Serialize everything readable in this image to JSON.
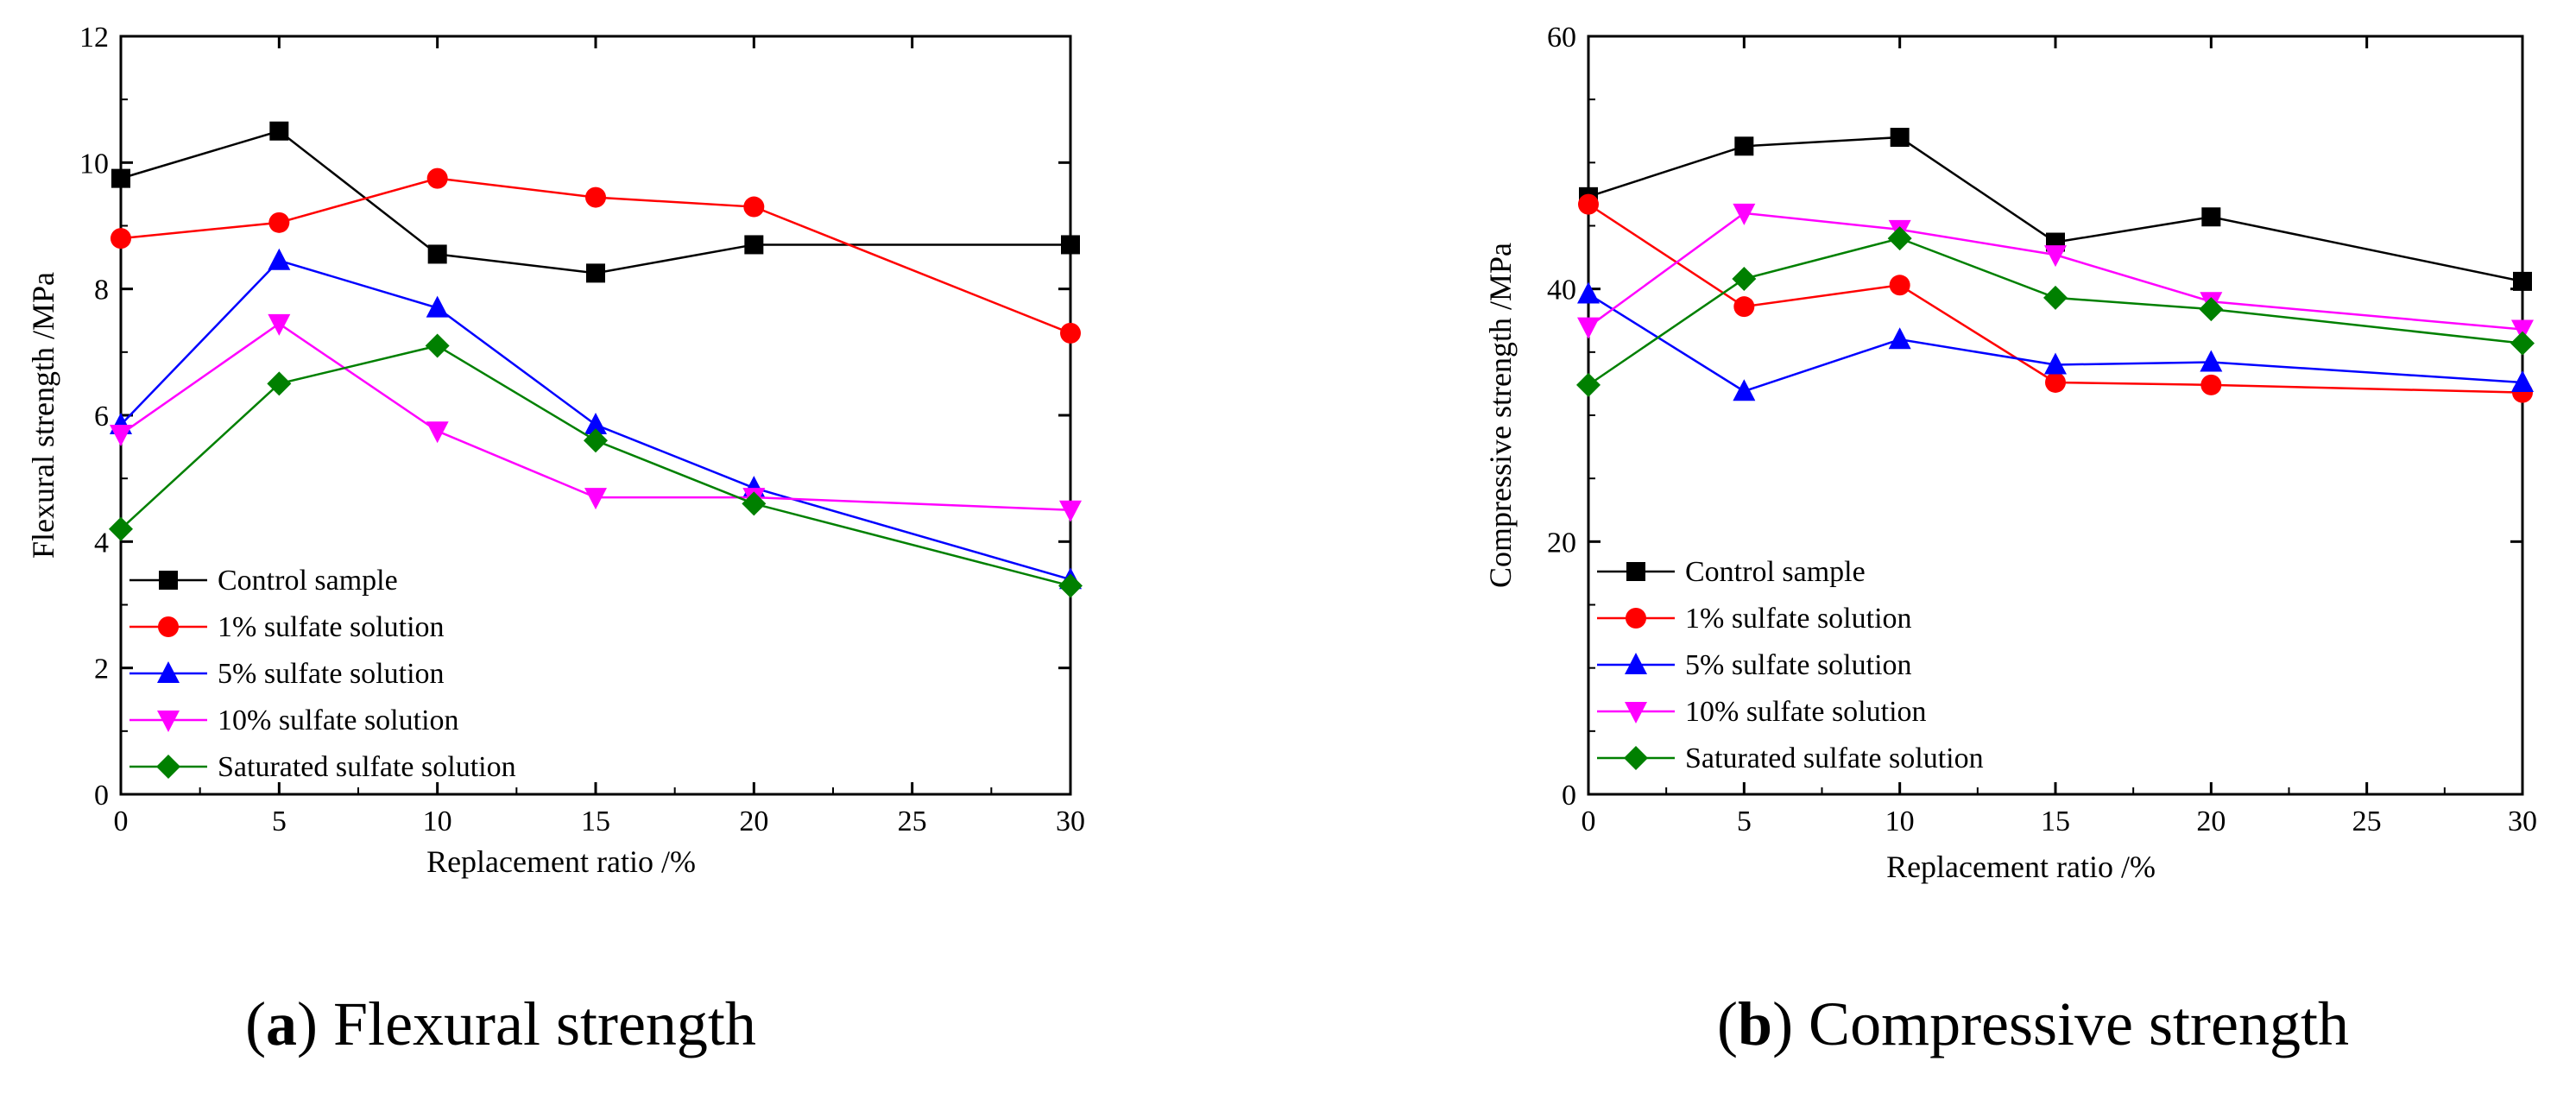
{
  "chart_data": [
    {
      "type": "line",
      "panel": "a",
      "caption_letter": "a",
      "caption_text": "Flexural strength",
      "xlabel": "Replacement ratio  /%",
      "ylabel": "Flexural strength /MPa",
      "x": [
        0,
        5,
        10,
        15,
        20,
        30
      ],
      "xlim": [
        0,
        30
      ],
      "ylim": [
        0,
        12
      ],
      "xticks": [
        0,
        5,
        10,
        15,
        20,
        25,
        30
      ],
      "yticks": [
        0,
        2,
        4,
        6,
        8,
        10,
        12
      ],
      "legend_position": "lower-left",
      "series": [
        {
          "name": "Control sample",
          "color": "#000000",
          "marker": "square",
          "values": [
            9.75,
            10.5,
            8.55,
            8.25,
            8.7,
            8.7
          ]
        },
        {
          "name": "1% sulfate solution",
          "color": "#ff0000",
          "marker": "circle",
          "values": [
            8.8,
            9.05,
            9.75,
            9.45,
            9.3,
            7.3
          ]
        },
        {
          "name": "5% sulfate solution",
          "color": "#0000ff",
          "marker": "triangle-up",
          "values": [
            5.85,
            8.45,
            7.7,
            5.85,
            4.85,
            3.4
          ]
        },
        {
          "name": "10% sulfate solution",
          "color": "#ff00ff",
          "marker": "triangle-down",
          "values": [
            5.7,
            7.45,
            5.75,
            4.7,
            4.7,
            4.5
          ]
        },
        {
          "name": "Saturated sulfate solution",
          "color": "#008000",
          "marker": "diamond",
          "values": [
            4.2,
            6.5,
            7.1,
            5.6,
            4.6,
            3.3
          ]
        }
      ]
    },
    {
      "type": "line",
      "panel": "b",
      "caption_letter": "b",
      "caption_text": "Compressive strength",
      "xlabel": "Replacement ratio  /%",
      "ylabel": "Compressive strength /MPa",
      "x": [
        0,
        5,
        10,
        15,
        20,
        30
      ],
      "xlim": [
        0,
        30
      ],
      "ylim": [
        0,
        60
      ],
      "xticks": [
        0,
        5,
        10,
        15,
        20,
        25,
        30
      ],
      "yticks": [
        0,
        20,
        40,
        60
      ],
      "legend_position": "lower-left",
      "series": [
        {
          "name": "Control sample",
          "color": "#000000",
          "marker": "square",
          "values": [
            47.3,
            51.3,
            52.0,
            43.7,
            45.7,
            40.6
          ]
        },
        {
          "name": "1% sulfate solution",
          "color": "#ff0000",
          "marker": "circle",
          "values": [
            46.7,
            38.6,
            40.3,
            32.6,
            32.4,
            31.8
          ]
        },
        {
          "name": "5% sulfate solution",
          "color": "#0000ff",
          "marker": "triangle-up",
          "values": [
            39.6,
            31.9,
            36.0,
            34.0,
            34.2,
            32.6
          ]
        },
        {
          "name": "10% sulfate solution",
          "color": "#ff00ff",
          "marker": "triangle-down",
          "values": [
            37.0,
            46.0,
            44.7,
            42.7,
            39.0,
            36.8
          ]
        },
        {
          "name": "Saturated sulfate solution",
          "color": "#008000",
          "marker": "diamond",
          "values": [
            32.4,
            40.8,
            44.0,
            39.3,
            38.4,
            35.7
          ]
        }
      ]
    }
  ]
}
